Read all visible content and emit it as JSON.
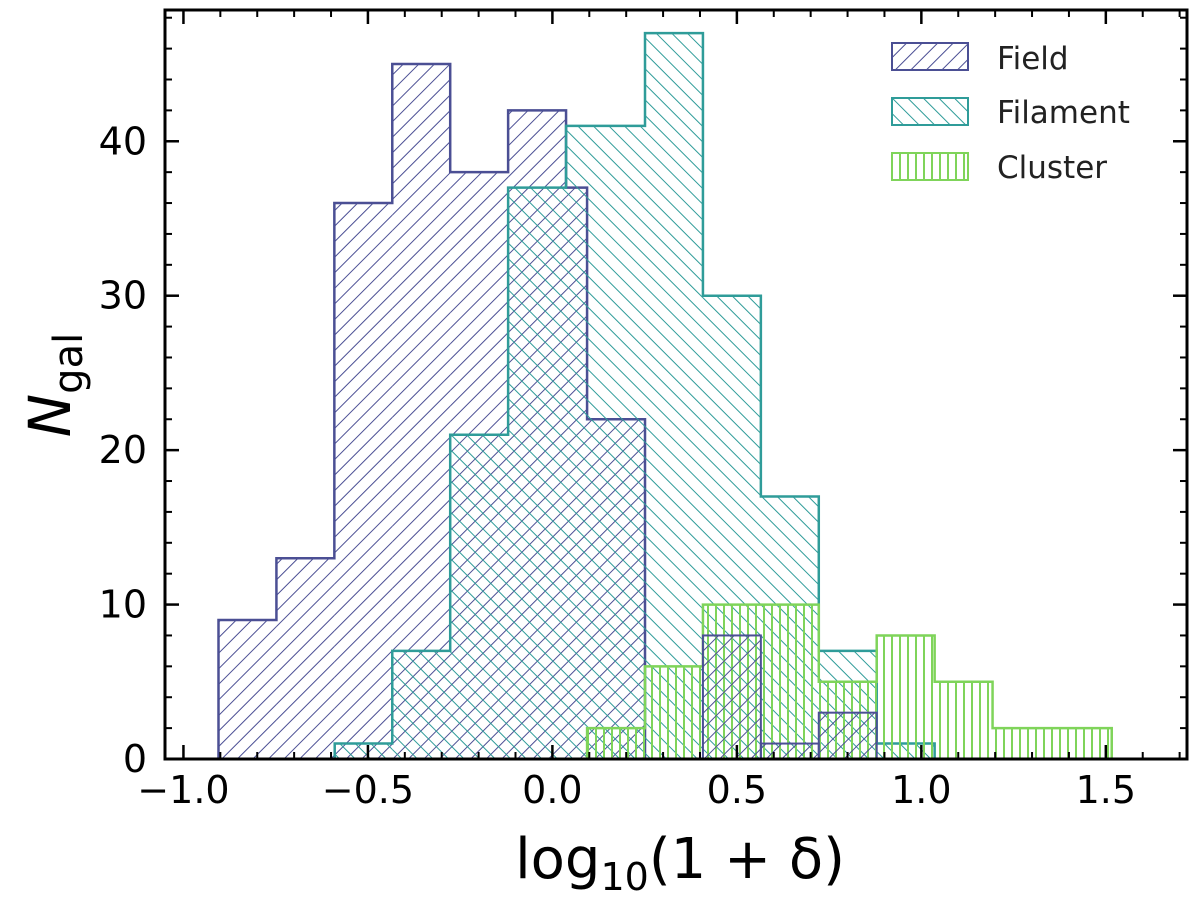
{
  "chart_data": {
    "type": "bar",
    "histogram": true,
    "xlabel": {
      "base": "log",
      "sub": "10",
      "rest": "(1 + δ)"
    },
    "ylabel": {
      "main": "N",
      "sub": "gal"
    },
    "xlim": [
      -1.05,
      1.72
    ],
    "ylim": [
      0,
      48.5
    ],
    "xticks": [
      -1.0,
      -0.5,
      0.0,
      0.5,
      1.0,
      1.5
    ],
    "xtick_labels": [
      "−1.0",
      "−0.5",
      "0.0",
      "0.5",
      "1.0",
      "1.5"
    ],
    "yticks": [
      0,
      10,
      20,
      30,
      40
    ],
    "ytick_labels": [
      "0",
      "10",
      "20",
      "30",
      "40"
    ],
    "legend_position": "top-right",
    "series": [
      {
        "name": "Field",
        "color": "#4b4f94",
        "hatch": "forward-diagonal",
        "bin_edges": [
          -0.905,
          -0.748,
          -0.591,
          -0.434,
          -0.277,
          -0.12,
          0.037,
          0.094,
          0.251
        ],
        "counts": [
          9,
          13,
          36,
          45,
          38,
          42,
          37,
          22
        ]
      },
      {
        "name": "Filament",
        "color": "#2f9c99",
        "hatch": "back-diagonal",
        "bin_edges": [
          -0.59,
          -0.434,
          -0.277,
          -0.12,
          0.037,
          0.094,
          0.251,
          0.408,
          0.565,
          0.722,
          0.879,
          1.036
        ],
        "counts": [
          1,
          7,
          21,
          37,
          41,
          41,
          47,
          30,
          17,
          7,
          1
        ]
      },
      {
        "name": "Cluster",
        "color": "#7fd45a",
        "hatch": "vertical",
        "bin_edges": [
          0.094,
          0.251,
          0.408,
          0.565,
          0.722,
          0.879,
          1.036,
          1.193,
          1.516
        ],
        "counts": [
          2,
          6,
          10,
          10,
          5,
          8,
          5,
          2
        ]
      }
    ],
    "overlay_field_outline": {
      "color": "#4b4f94",
      "bins": [
        {
          "x0": 0.408,
          "x1": 0.565,
          "count": 8
        },
        {
          "x0": 0.565,
          "x1": 0.722,
          "count": 1
        },
        {
          "x0": 0.722,
          "x1": 0.879,
          "count": 3
        }
      ]
    }
  }
}
